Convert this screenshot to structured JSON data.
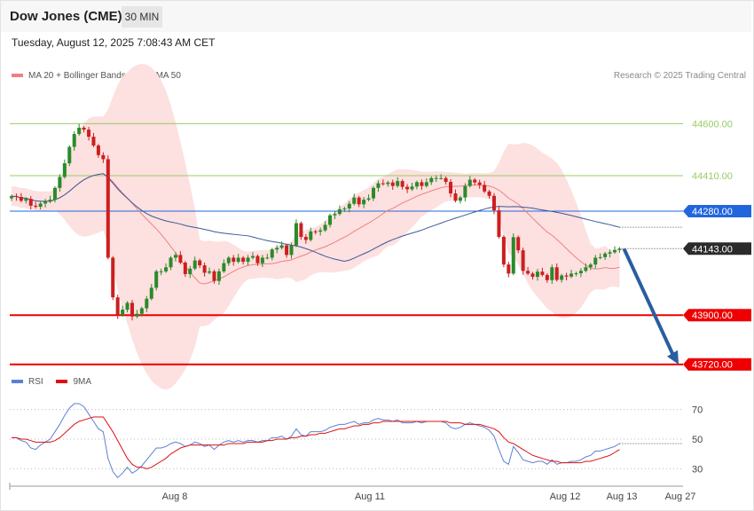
{
  "header": {
    "title": "Dow Jones (CME)",
    "timeframe": "30 MIN"
  },
  "datetime": "Tuesday, August 12, 2025 7:08:43 AM CET",
  "legend": {
    "ma20": "MA 20 + Bollinger Bands",
    "ma50": "MA 50",
    "rsi": "RSI",
    "ma9": "9MA"
  },
  "copyright": "Research © 2025 Trading Central",
  "colors": {
    "up": "#2a8a2a",
    "down": "#cc1f1f",
    "ma20": "#f08080",
    "ma50": "#3b5a99",
    "band": "#fde0e0",
    "level_blue": "#2266dd",
    "level_red": "#ee0000",
    "level_green": "#99cc66",
    "rsi": "#5b7fd6",
    "rsi_ma": "#dd1111",
    "arrow": "#2a5da0"
  },
  "chart_data": [
    {
      "type": "candlestick",
      "title": "Dow Jones (CME) 30 MIN",
      "ylim": [
        43690,
        44760
      ],
      "x_ticks": [
        "Aug 8",
        "Aug 11",
        "Aug 12",
        "Aug 13",
        "Aug 27"
      ],
      "current_price": 44143.0,
      "levels": [
        {
          "value": 44600.0,
          "label": "44600.00",
          "style": "green"
        },
        {
          "value": 44410.0,
          "label": "44410.00",
          "style": "green"
        },
        {
          "value": 44280.0,
          "label": "44280.00",
          "style": "blue"
        },
        {
          "value": 44143.0,
          "label": "44143.00",
          "style": "current"
        },
        {
          "value": 43900.0,
          "label": "43900.00",
          "style": "red"
        },
        {
          "value": 43720.0,
          "label": "43720.00",
          "style": "red"
        }
      ],
      "forecast_arrow": {
        "from": 44143,
        "to": 43720
      },
      "closes": [
        44335,
        44332,
        44318,
        44325,
        44300,
        44296,
        44308,
        44315,
        44322,
        44365,
        44405,
        44455,
        44515,
        44562,
        44585,
        44578,
        44552,
        44520,
        44485,
        44470,
        44110,
        43965,
        43900,
        43920,
        43945,
        43895,
        43905,
        43925,
        43960,
        44000,
        44060,
        44060,
        44075,
        44110,
        44120,
        44092,
        44050,
        44070,
        44100,
        44082,
        44055,
        44060,
        44025,
        44060,
        44090,
        44110,
        44095,
        44110,
        44095,
        44110,
        44116,
        44090,
        44110,
        44110,
        44140,
        44146,
        44155,
        44120,
        44155,
        44236,
        44186,
        44175,
        44206,
        44205,
        44210,
        44230,
        44265,
        44270,
        44287,
        44290,
        44307,
        44330,
        44305,
        44322,
        44327,
        44365,
        44382,
        44379,
        44385,
        44372,
        44390,
        44369,
        44360,
        44370,
        44386,
        44372,
        44386,
        44401,
        44401,
        44401,
        44387,
        44345,
        44318,
        44330,
        44372,
        44395,
        44385,
        44376,
        44352,
        44336,
        44283,
        44186,
        44085,
        44052,
        44185,
        44137,
        44062,
        44052,
        44040,
        44059,
        44047,
        44028,
        44075,
        44029,
        44045,
        44041,
        44052,
        44053,
        44062,
        44075,
        44085,
        44110,
        44112,
        44125,
        44130,
        44138,
        44143
      ]
    },
    {
      "type": "line",
      "title": "RSI",
      "ylim": [
        20,
        80
      ],
      "y_ticks": [
        70,
        50,
        30
      ],
      "series": [
        {
          "name": "RSI"
        },
        {
          "name": "9MA"
        }
      ],
      "rsi": [
        51,
        51,
        49,
        48,
        44,
        43,
        46,
        48,
        50,
        55,
        60,
        66,
        71,
        74,
        74,
        72,
        67,
        62,
        57,
        55,
        37,
        28,
        24,
        27,
        31,
        27,
        29,
        32,
        36,
        40,
        44,
        44,
        45,
        47,
        48,
        47,
        45,
        46,
        48,
        47,
        45,
        46,
        43,
        46,
        48,
        49,
        48,
        49,
        48,
        49,
        49,
        48,
        49,
        49,
        51,
        51,
        52,
        50,
        52,
        57,
        53,
        52,
        55,
        55,
        55,
        56,
        58,
        59,
        60,
        60,
        61,
        62,
        60,
        61,
        61,
        63,
        64,
        63,
        63,
        62,
        63,
        61,
        61,
        61,
        62,
        61,
        62,
        62,
        62,
        62,
        61,
        58,
        57,
        58,
        60,
        61,
        60,
        59,
        58,
        56,
        52,
        43,
        35,
        33,
        45,
        41,
        36,
        35,
        34,
        35,
        35,
        33,
        36,
        33,
        34,
        34,
        35,
        35,
        36,
        38,
        39,
        42,
        42,
        43,
        44,
        45,
        47
      ],
      "ma9": [
        51,
        51,
        50,
        50,
        49,
        48,
        48,
        48,
        48,
        49,
        51,
        54,
        57,
        60,
        62,
        63,
        64,
        65,
        65,
        65,
        60,
        55,
        49,
        43,
        37,
        33,
        31,
        31,
        30,
        31,
        33,
        35,
        37,
        40,
        42,
        44,
        45,
        46,
        46,
        46,
        46,
        46,
        46,
        46,
        46,
        47,
        47,
        47,
        47,
        48,
        48,
        48,
        48,
        49,
        49,
        50,
        50,
        50,
        51,
        51,
        52,
        52,
        53,
        53,
        54,
        54,
        55,
        56,
        57,
        57,
        58,
        59,
        59,
        60,
        60,
        61,
        61,
        62,
        62,
        62,
        62,
        62,
        62,
        62,
        62,
        62,
        62,
        62,
        62,
        62,
        62,
        61,
        61,
        61,
        60,
        60,
        60,
        60,
        59,
        58,
        57,
        55,
        51,
        48,
        47,
        45,
        43,
        41,
        39,
        38,
        37,
        36,
        35,
        35,
        34,
        34,
        34,
        34,
        34,
        35,
        35,
        36,
        37,
        38,
        39,
        41,
        43
      ]
    }
  ]
}
